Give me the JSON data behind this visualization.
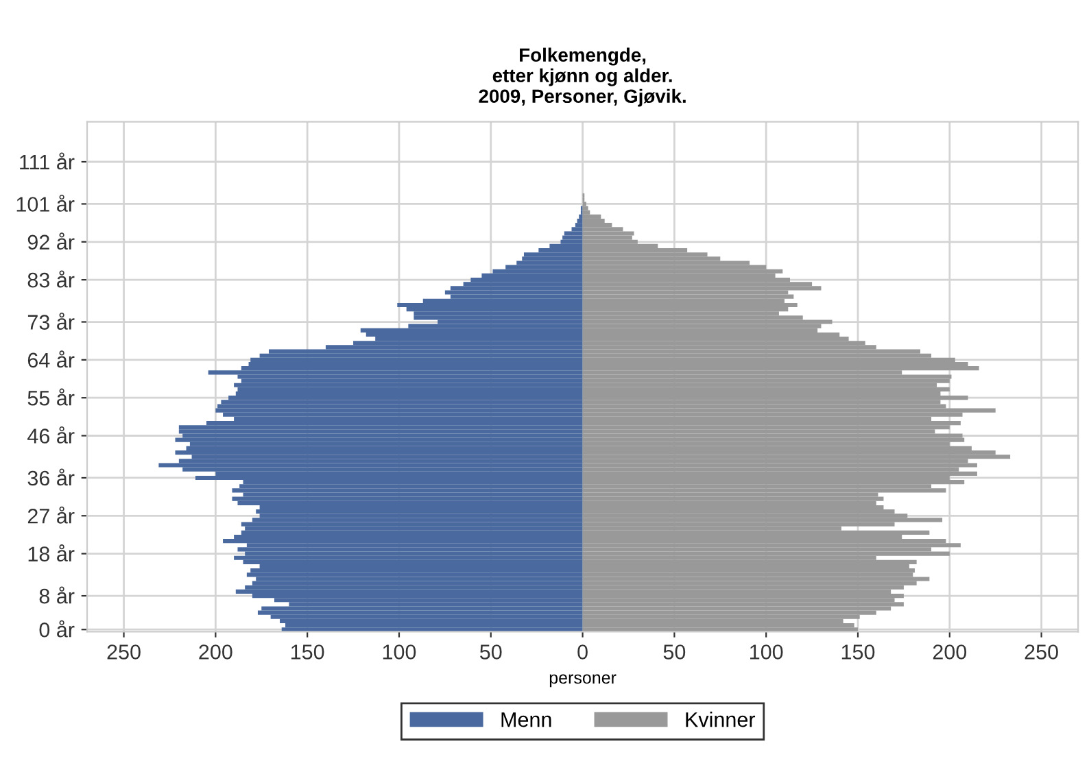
{
  "chart_data": {
    "type": "bar",
    "orientation": "horizontal",
    "stacked": true,
    "title": "Folkemengde,\netter kjønn og alder.\n2009, Personer, Gjøvik.",
    "xlabel": "personer",
    "categories": [
      null,
      null,
      null,
      null,
      null,
      null,
      null,
      null,
      null,
      "111 år",
      null,
      null,
      null,
      null,
      null,
      null,
      null,
      null,
      null,
      "101 år",
      null,
      null,
      null,
      null,
      null,
      null,
      null,
      null,
      "92 år",
      null,
      null,
      null,
      null,
      null,
      null,
      null,
      null,
      "83 år",
      null,
      null,
      null,
      null,
      null,
      null,
      null,
      null,
      null,
      "73 år",
      null,
      null,
      null,
      null,
      null,
      null,
      null,
      null,
      "64 år",
      null,
      null,
      null,
      null,
      null,
      null,
      null,
      null,
      "55 år",
      null,
      null,
      null,
      null,
      null,
      null,
      null,
      null,
      "46 år",
      null,
      null,
      null,
      null,
      null,
      null,
      null,
      null,
      null,
      "36 år",
      null,
      null,
      null,
      null,
      null,
      null,
      null,
      null,
      "27 år",
      null,
      null,
      null,
      null,
      null,
      null,
      null,
      null,
      "18 år",
      null,
      null,
      null,
      null,
      null,
      null,
      null,
      null,
      null,
      "8 år",
      null,
      null,
      null,
      null,
      null,
      null,
      null,
      "0 år"
    ],
    "series": [
      {
        "name": "Menn",
        "color": "#4a6a9f",
        "values": [
          0,
          0,
          0,
          0,
          0,
          0,
          0,
          0,
          0,
          0,
          0,
          0,
          0,
          0,
          0,
          0,
          0,
          0,
          0,
          0,
          -1,
          -1,
          -2,
          -3,
          -4,
          -6,
          -10,
          -11,
          -12,
          -18,
          -24,
          -32,
          -33,
          -36,
          -42,
          -49,
          -55,
          -61,
          -65,
          -72,
          -75,
          -72,
          -87,
          -101,
          -96,
          -92,
          -92,
          -79,
          -95,
          -121,
          -118,
          -113,
          -125,
          -140,
          -171,
          -176,
          -181,
          -182,
          -186,
          -204,
          -188,
          -186,
          -190,
          -188,
          -189,
          -193,
          -197,
          -199,
          -200,
          -196,
          -190,
          -205,
          -220,
          -220,
          -218,
          -222,
          -214,
          -216,
          -222,
          -213,
          -220,
          -231,
          -218,
          -200,
          -211,
          -185,
          -187,
          -191,
          -185,
          -191,
          -188,
          -176,
          -178,
          -176,
          -180,
          -186,
          -184,
          -186,
          -190,
          -196,
          -183,
          -188,
          -184,
          -190,
          -185,
          -176,
          -181,
          -183,
          -178,
          -180,
          -184,
          -189,
          -180,
          -168,
          -160,
          -175,
          -177,
          -170,
          -165,
          -162,
          -164
        ]
      },
      {
        "name": "Kvinner",
        "color": "#999999",
        "values": [
          0,
          0,
          0,
          0,
          0,
          0,
          0,
          0,
          0,
          0,
          0,
          0,
          0,
          0,
          0,
          0,
          0,
          1,
          1,
          2,
          3,
          4,
          10,
          12,
          16,
          22,
          28,
          27,
          30,
          41,
          57,
          68,
          75,
          91,
          100,
          109,
          105,
          113,
          125,
          130,
          112,
          115,
          110,
          117,
          112,
          107,
          120,
          136,
          130,
          128,
          140,
          145,
          154,
          160,
          184,
          190,
          203,
          210,
          216,
          174,
          201,
          200,
          193,
          200,
          195,
          210,
          195,
          198,
          225,
          207,
          190,
          206,
          200,
          192,
          207,
          208,
          200,
          212,
          225,
          233,
          210,
          215,
          205,
          215,
          200,
          208,
          190,
          198,
          161,
          164,
          160,
          164,
          170,
          177,
          196,
          170,
          141,
          189,
          174,
          198,
          206,
          190,
          200,
          160,
          182,
          178,
          181,
          180,
          189,
          182,
          175,
          168,
          175,
          170,
          175,
          168,
          160,
          151,
          142,
          148,
          150
        ]
      }
    ],
    "xlim": [
      -270,
      270
    ],
    "xticks": [
      {
        "value": -250,
        "label": "250"
      },
      {
        "value": -200,
        "label": "200"
      },
      {
        "value": -150,
        "label": "150"
      },
      {
        "value": -100,
        "label": "100"
      },
      {
        "value": -50,
        "label": "50"
      },
      0,
      50,
      100,
      150,
      200,
      250
    ],
    "grid": true,
    "legend": "bottom"
  }
}
